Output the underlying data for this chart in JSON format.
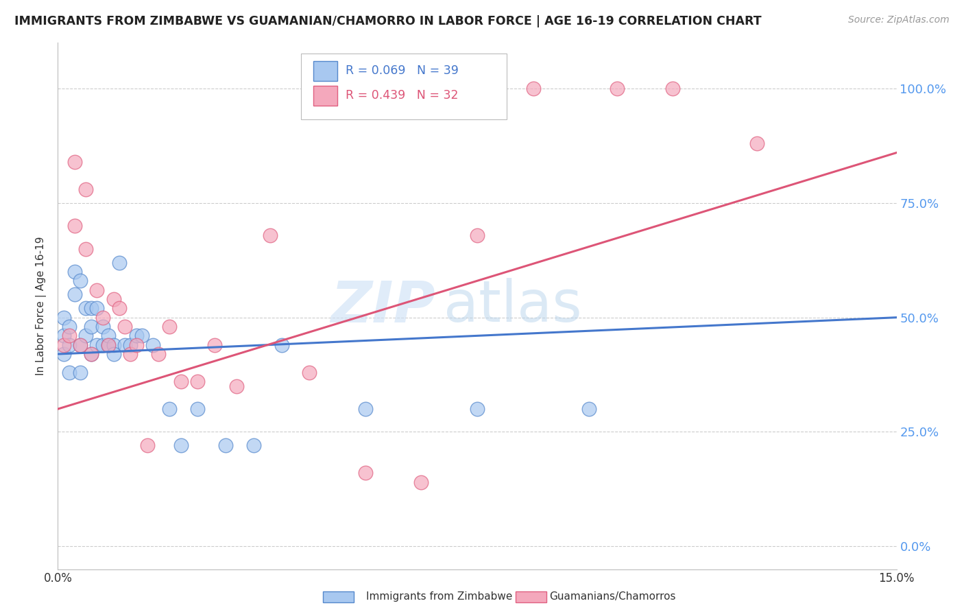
{
  "title": "IMMIGRANTS FROM ZIMBABWE VS GUAMANIAN/CHAMORRO IN LABOR FORCE | AGE 16-19 CORRELATION CHART",
  "source": "Source: ZipAtlas.com",
  "ylabel": "In Labor Force | Age 16-19",
  "xlim": [
    0.0,
    0.15
  ],
  "ylim": [
    -0.05,
    1.1
  ],
  "yticks": [
    0.0,
    0.25,
    0.5,
    0.75,
    1.0
  ],
  "ytick_labels": [
    "0.0%",
    "25.0%",
    "50.0%",
    "75.0%",
    "100.0%"
  ],
  "xticks": [
    0.0,
    0.03,
    0.06,
    0.09,
    0.12,
    0.15
  ],
  "xtick_labels": [
    "0.0%",
    "",
    "",
    "",
    "",
    "15.0%"
  ],
  "blue_R": 0.069,
  "blue_N": 39,
  "pink_R": 0.439,
  "pink_N": 32,
  "legend_label_blue": "Immigrants from Zimbabwe",
  "legend_label_pink": "Guamanians/Chamorros",
  "blue_fill": "#A8C8F0",
  "pink_fill": "#F4A8BC",
  "blue_edge": "#5588CC",
  "pink_edge": "#E06080",
  "blue_line": "#4477CC",
  "pink_line": "#DD5577",
  "watermark_zip": "ZIP",
  "watermark_atlas": "atlas",
  "background_color": "#FFFFFF",
  "grid_color": "#CCCCCC",
  "blue_scatter_x": [
    0.001,
    0.001,
    0.001,
    0.002,
    0.002,
    0.002,
    0.003,
    0.003,
    0.004,
    0.004,
    0.004,
    0.005,
    0.005,
    0.006,
    0.006,
    0.006,
    0.007,
    0.007,
    0.008,
    0.008,
    0.009,
    0.009,
    0.01,
    0.01,
    0.011,
    0.012,
    0.013,
    0.014,
    0.015,
    0.017,
    0.02,
    0.022,
    0.025,
    0.03,
    0.035,
    0.04,
    0.055,
    0.075,
    0.095
  ],
  "blue_scatter_y": [
    0.42,
    0.46,
    0.5,
    0.44,
    0.48,
    0.38,
    0.6,
    0.55,
    0.58,
    0.44,
    0.38,
    0.52,
    0.46,
    0.48,
    0.42,
    0.52,
    0.44,
    0.52,
    0.44,
    0.48,
    0.44,
    0.46,
    0.44,
    0.42,
    0.62,
    0.44,
    0.44,
    0.46,
    0.46,
    0.44,
    0.3,
    0.22,
    0.3,
    0.22,
    0.22,
    0.44,
    0.3,
    0.3,
    0.3
  ],
  "pink_scatter_x": [
    0.001,
    0.002,
    0.003,
    0.004,
    0.005,
    0.006,
    0.007,
    0.008,
    0.009,
    0.01,
    0.011,
    0.012,
    0.013,
    0.014,
    0.016,
    0.018,
    0.02,
    0.022,
    0.025,
    0.028,
    0.032,
    0.038,
    0.045,
    0.055,
    0.065,
    0.075,
    0.085,
    0.1,
    0.11,
    0.125,
    0.003,
    0.005
  ],
  "pink_scatter_y": [
    0.44,
    0.46,
    0.7,
    0.44,
    0.78,
    0.42,
    0.56,
    0.5,
    0.44,
    0.54,
    0.52,
    0.48,
    0.42,
    0.44,
    0.22,
    0.42,
    0.48,
    0.36,
    0.36,
    0.44,
    0.35,
    0.68,
    0.38,
    0.16,
    0.14,
    0.68,
    1.0,
    1.0,
    1.0,
    0.88,
    0.84,
    0.65
  ],
  "blue_line_x0": 0.0,
  "blue_line_x1": 0.15,
  "blue_line_y0": 0.42,
  "blue_line_y1": 0.5,
  "pink_line_x0": 0.0,
  "pink_line_x1": 0.15,
  "pink_line_y0": 0.3,
  "pink_line_y1": 0.86
}
